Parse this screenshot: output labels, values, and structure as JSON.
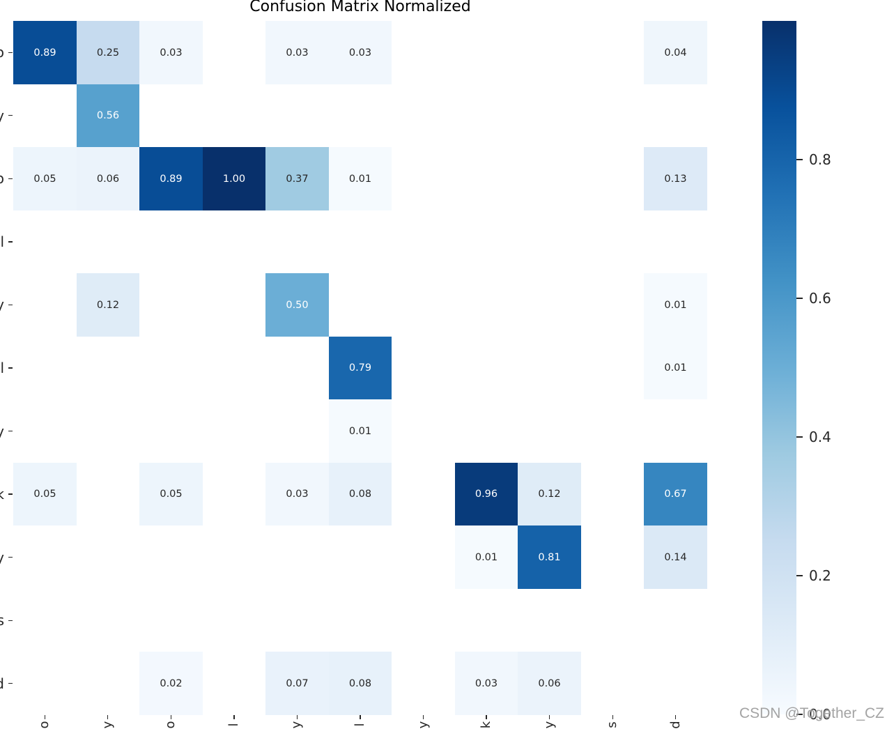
{
  "chart_data": {
    "type": "heatmap",
    "title": "Confusion Matrix Normalized",
    "y_tick_labels": [
      "o",
      "y",
      "o",
      "l",
      "y",
      "l",
      "y",
      "k",
      "y",
      "s",
      "d"
    ],
    "x_tick_labels": [
      "o",
      "y",
      "o",
      "l",
      "y",
      "l",
      "y",
      "k",
      "y",
      "s",
      "d"
    ],
    "values": [
      [
        0.89,
        0.25,
        0.03,
        null,
        0.03,
        0.03,
        null,
        null,
        null,
        null,
        0.04
      ],
      [
        null,
        0.56,
        null,
        null,
        null,
        null,
        null,
        null,
        null,
        null,
        null
      ],
      [
        0.05,
        0.06,
        0.89,
        1.0,
        0.37,
        0.01,
        null,
        null,
        null,
        null,
        0.13
      ],
      [
        null,
        null,
        null,
        null,
        null,
        null,
        null,
        null,
        null,
        null,
        null
      ],
      [
        null,
        0.12,
        null,
        null,
        0.5,
        null,
        null,
        null,
        null,
        null,
        0.01
      ],
      [
        null,
        null,
        null,
        null,
        null,
        0.79,
        null,
        null,
        null,
        null,
        0.01
      ],
      [
        null,
        null,
        null,
        null,
        null,
        0.01,
        null,
        null,
        null,
        null,
        null
      ],
      [
        0.05,
        null,
        0.05,
        null,
        0.03,
        0.08,
        null,
        0.96,
        0.12,
        null,
        0.67
      ],
      [
        null,
        null,
        null,
        null,
        null,
        null,
        null,
        0.01,
        0.81,
        null,
        0.14
      ],
      [
        null,
        null,
        null,
        null,
        null,
        null,
        null,
        null,
        null,
        null,
        null
      ],
      [
        null,
        null,
        0.02,
        null,
        0.07,
        0.08,
        null,
        0.03,
        0.06,
        null,
        null
      ]
    ],
    "colorbar": {
      "vmin": 0.0,
      "vmax": 1.0,
      "ticks": [
        0.8,
        0.6,
        0.4,
        0.2,
        0.0
      ],
      "tick_labels": [
        "0.8",
        "0.6",
        "0.4",
        "0.2",
        "0.0"
      ]
    },
    "colormap_stops": [
      "#f7fbff",
      "#deebf7",
      "#c6dbef",
      "#9ecae1",
      "#6baed6",
      "#4292c6",
      "#2171b5",
      "#08519c",
      "#08306b"
    ]
  },
  "watermark": "CSDN @Together_CZ",
  "colors": {
    "background": "#ffffff",
    "text_dark": "#262626",
    "text_light": "#ffffff",
    "axis": "#262626"
  }
}
